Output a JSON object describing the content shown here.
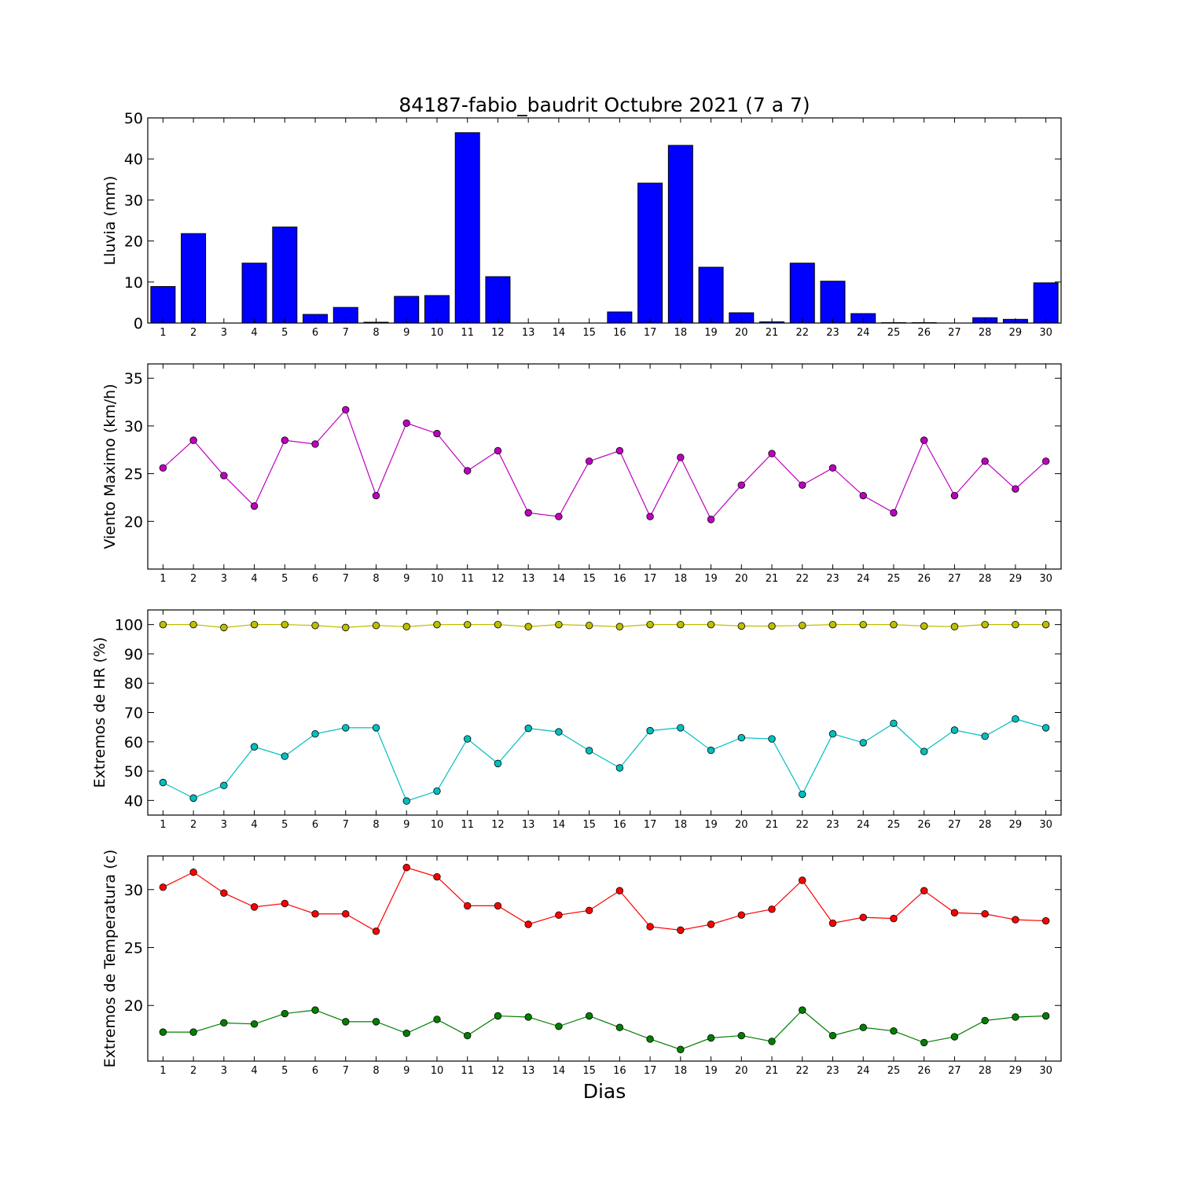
{
  "title": "84187-fabio_baudrit Octubre 2021  (7 a 7)",
  "xlabel": "Dias",
  "chart_data": [
    {
      "type": "bar",
      "ylabel": "Lluvia (mm)",
      "ylim": [
        0,
        50
      ],
      "yticks": [
        0,
        10,
        20,
        30,
        40,
        50
      ],
      "x": [
        1,
        2,
        3,
        4,
        5,
        6,
        7,
        8,
        9,
        10,
        11,
        12,
        13,
        14,
        15,
        16,
        17,
        18,
        19,
        20,
        21,
        22,
        23,
        24,
        25,
        26,
        27,
        28,
        29,
        30
      ],
      "values": [
        8.9,
        21.8,
        0,
        14.6,
        23.4,
        2.1,
        3.8,
        0.2,
        6.5,
        6.7,
        46.4,
        11.3,
        0,
        0,
        0,
        2.7,
        34.1,
        43.3,
        13.6,
        2.5,
        0.3,
        14.6,
        10.2,
        2.3,
        0.1,
        0.1,
        0,
        1.3,
        0.9,
        9.8
      ],
      "color": "#0000ff"
    },
    {
      "type": "line",
      "ylabel": "Viento Maximo (km/h)",
      "ylim": [
        15,
        36.5
      ],
      "yticks": [
        20,
        25,
        30,
        35
      ],
      "x": [
        1,
        2,
        3,
        4,
        5,
        6,
        7,
        8,
        9,
        10,
        11,
        12,
        13,
        14,
        15,
        16,
        17,
        18,
        19,
        20,
        21,
        22,
        23,
        24,
        25,
        26,
        27,
        28,
        29,
        30
      ],
      "series": [
        {
          "values": [
            25.6,
            28.5,
            24.8,
            21.6,
            28.5,
            28.1,
            31.7,
            22.7,
            30.3,
            29.2,
            25.3,
            27.4,
            20.9,
            20.5,
            26.3,
            27.4,
            20.5,
            26.7,
            20.2,
            23.8,
            27.1,
            23.8,
            25.6,
            22.7,
            20.9,
            28.5,
            22.7,
            26.3,
            23.4,
            26.3
          ],
          "color": "#bf00bf"
        }
      ]
    },
    {
      "type": "line",
      "ylabel": "Extremos de HR (%)",
      "ylim": [
        35,
        105
      ],
      "yticks": [
        40,
        50,
        60,
        70,
        80,
        90,
        100
      ],
      "x": [
        1,
        2,
        3,
        4,
        5,
        6,
        7,
        8,
        9,
        10,
        11,
        12,
        13,
        14,
        15,
        16,
        17,
        18,
        19,
        20,
        21,
        22,
        23,
        24,
        25,
        26,
        27,
        28,
        29,
        30
      ],
      "series": [
        {
          "values": [
            100,
            100,
            99,
            100,
            100,
            99.7,
            99,
            99.7,
            99.3,
            100,
            100,
            100,
            99.3,
            100,
            99.7,
            99.3,
            100,
            100,
            100,
            99.5,
            99.5,
            99.7,
            100,
            100,
            100,
            99.5,
            99.3,
            100,
            100,
            100
          ],
          "color": "#bfbf00"
        },
        {
          "values": [
            46.1,
            40.8,
            45.1,
            58.3,
            55.1,
            62.7,
            64.8,
            64.8,
            39.8,
            43.2,
            61,
            52.6,
            64.6,
            63.4,
            57,
            51.1,
            63.8,
            64.8,
            57.1,
            61.4,
            61,
            42.1,
            62.7,
            59.7,
            66.3,
            56.7,
            64,
            61.9,
            67.8,
            64.8
          ],
          "color": "#00bfbf"
        }
      ]
    },
    {
      "type": "line",
      "ylabel": "Extremos de Temperatura (c)",
      "ylim": [
        15.2,
        32.9
      ],
      "yticks": [
        20,
        25,
        30
      ],
      "x": [
        1,
        2,
        3,
        4,
        5,
        6,
        7,
        8,
        9,
        10,
        11,
        12,
        13,
        14,
        15,
        16,
        17,
        18,
        19,
        20,
        21,
        22,
        23,
        24,
        25,
        26,
        27,
        28,
        29,
        30
      ],
      "series": [
        {
          "values": [
            30.2,
            31.5,
            29.7,
            28.5,
            28.8,
            27.9,
            27.9,
            26.4,
            31.9,
            31.1,
            28.6,
            28.6,
            27,
            27.8,
            28.2,
            29.9,
            26.8,
            26.5,
            27,
            27.8,
            28.3,
            30.8,
            27.1,
            27.6,
            27.5,
            29.9,
            28,
            27.9,
            27.4,
            27.3
          ],
          "color": "#ff0000"
        },
        {
          "values": [
            17.7,
            17.7,
            18.5,
            18.4,
            19.3,
            19.6,
            18.6,
            18.6,
            17.6,
            18.8,
            17.4,
            19.1,
            19,
            18.2,
            19.1,
            18.1,
            17.1,
            16.2,
            17.2,
            17.4,
            16.9,
            19.6,
            17.4,
            18.1,
            17.8,
            16.8,
            17.3,
            18.7,
            19,
            19.1
          ],
          "color": "#007f00"
        }
      ]
    }
  ]
}
